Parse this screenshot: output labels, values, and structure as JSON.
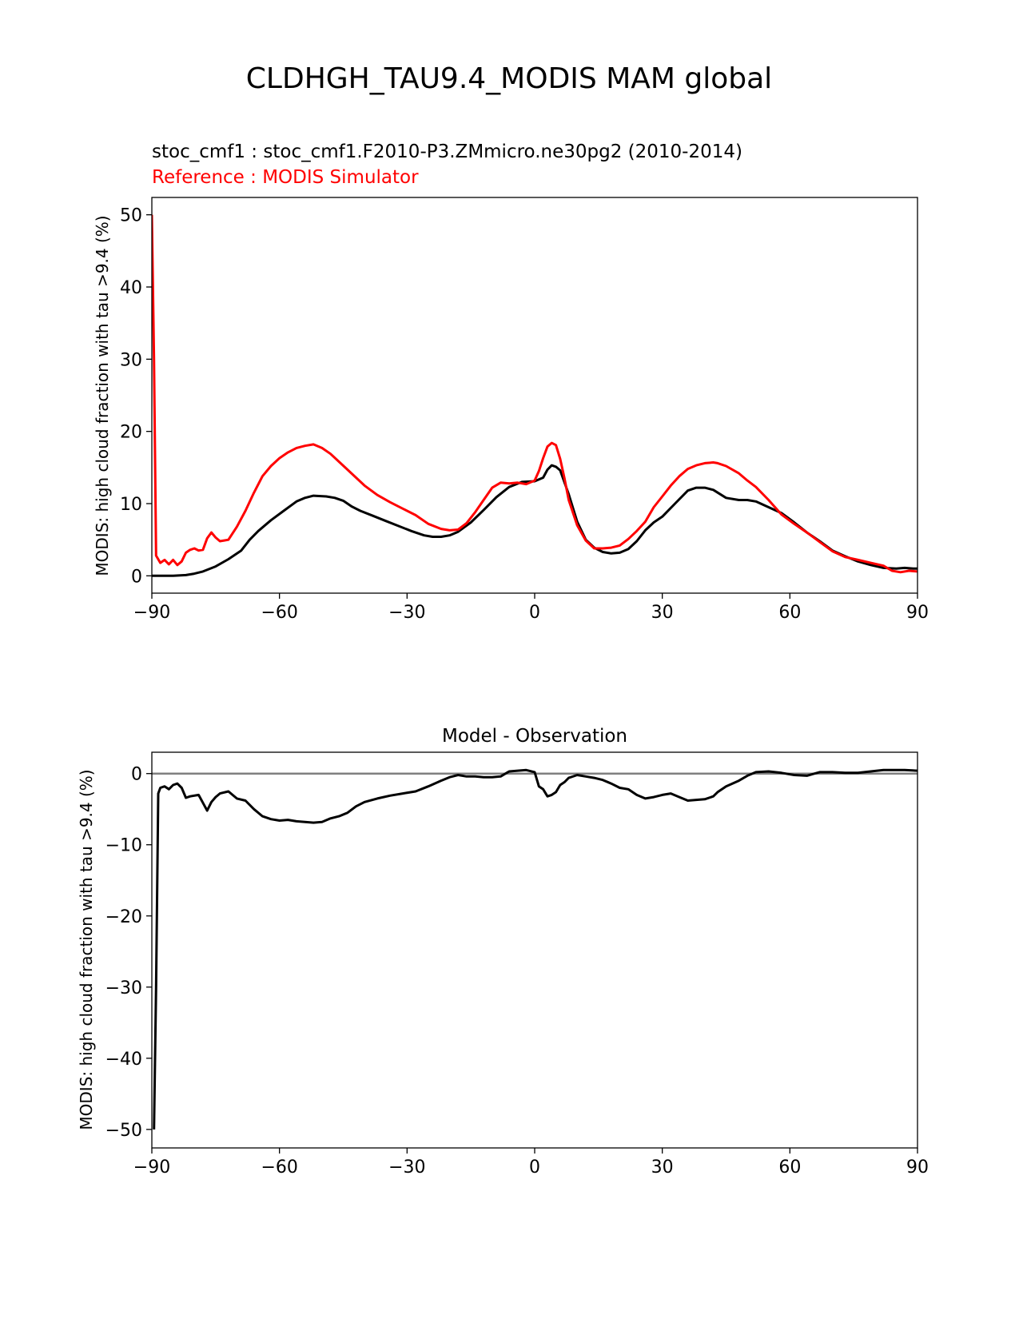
{
  "figure": {
    "title": "CLDHGH_TAU9.4_MODIS MAM global"
  },
  "chart_data": [
    {
      "type": "line",
      "subtitle_test": "stoc_cmf1 : stoc_cmf1.F2010-P3.ZMmicro.ne30pg2 (2010-2014)",
      "subtitle_ref": "Reference : MODIS Simulator",
      "xlabel": "",
      "ylabel": "MODIS: high cloud fraction with tau >9.4 (%)",
      "xlim": [
        -90,
        90
      ],
      "ylim": [
        -2.4,
        52.4
      ],
      "xticks": [
        -90,
        -60,
        -30,
        0,
        30,
        60,
        90
      ],
      "xtick_labels": [
        "−90",
        "−60",
        "−30",
        "0",
        "30",
        "60",
        "90"
      ],
      "yticks": [
        0,
        10,
        20,
        30,
        40,
        50
      ],
      "ytick_labels": [
        "0",
        "10",
        "20",
        "30",
        "40",
        "50"
      ],
      "grid": false,
      "series": [
        {
          "name": "stoc_cmf1",
          "color": "#000000",
          "x": [
            -90,
            -85,
            -82,
            -80,
            -78,
            -75,
            -72,
            -69,
            -67,
            -65,
            -62,
            -59,
            -56,
            -54,
            -52,
            -49,
            -47,
            -45,
            -43,
            -41,
            -38,
            -35,
            -32,
            -29,
            -26,
            -24,
            -22,
            -20,
            -18,
            -15,
            -12,
            -9,
            -6,
            -3,
            0,
            2,
            3,
            4,
            5,
            6,
            8,
            10,
            12,
            14,
            16,
            18,
            20,
            22,
            24,
            26,
            28,
            30,
            33,
            36,
            38,
            40,
            42,
            45,
            48,
            50,
            52,
            55,
            58,
            61,
            64,
            67,
            70,
            73,
            76,
            79,
            82,
            85,
            87,
            89,
            90
          ],
          "y": [
            0,
            0,
            0.1,
            0.3,
            0.6,
            1.3,
            2.3,
            3.5,
            5.0,
            6.2,
            7.7,
            9.0,
            10.3,
            10.8,
            11.1,
            11.0,
            10.8,
            10.4,
            9.6,
            9.0,
            8.3,
            7.6,
            6.9,
            6.2,
            5.6,
            5.4,
            5.4,
            5.6,
            6.1,
            7.4,
            9.1,
            10.9,
            12.3,
            13.0,
            13.1,
            13.6,
            14.7,
            15.3,
            15.1,
            14.6,
            11.3,
            7.5,
            5.0,
            3.9,
            3.3,
            3.1,
            3.2,
            3.7,
            4.8,
            6.3,
            7.4,
            8.2,
            10.0,
            11.8,
            12.2,
            12.2,
            11.9,
            10.8,
            10.5,
            10.5,
            10.3,
            9.5,
            8.7,
            7.4,
            6.0,
            4.8,
            3.5,
            2.7,
            2.0,
            1.5,
            1.1,
            1.0,
            1.1,
            1.0,
            1.0
          ],
          "stroke_width": 3
        },
        {
          "name": "MODIS Simulator",
          "color": "#ff0000",
          "x": [
            -90,
            -89.5,
            -89,
            -88,
            -87,
            -86,
            -85,
            -84,
            -83,
            -82,
            -81,
            -80,
            -79,
            -78,
            -77,
            -76,
            -75,
            -74,
            -73,
            -72,
            -70,
            -68,
            -66,
            -64,
            -62,
            -60,
            -58,
            -56,
            -54,
            -52,
            -50,
            -48,
            -46,
            -44,
            -42,
            -40,
            -37,
            -34,
            -31,
            -28,
            -25,
            -22,
            -20,
            -18,
            -16,
            -14,
            -12,
            -10,
            -8,
            -6,
            -4,
            -2,
            0,
            1,
            2,
            3,
            4,
            5,
            6,
            7,
            8,
            10,
            12,
            14,
            16,
            18,
            20,
            22,
            24,
            26,
            28,
            30,
            32,
            34,
            36,
            38,
            40,
            42,
            43,
            45,
            48,
            50,
            52,
            55,
            58,
            61,
            64,
            67,
            70,
            73,
            76,
            79,
            82,
            84,
            86,
            88,
            90
          ],
          "y": [
            50,
            30,
            2.8,
            1.8,
            2.2,
            1.6,
            2.2,
            1.5,
            2.0,
            3.2,
            3.6,
            3.8,
            3.5,
            3.6,
            5.2,
            6.0,
            5.3,
            4.8,
            4.9,
            5.0,
            6.8,
            9.0,
            11.5,
            13.8,
            15.2,
            16.3,
            17.1,
            17.7,
            18.0,
            18.2,
            17.7,
            16.9,
            15.8,
            14.7,
            13.6,
            12.5,
            11.2,
            10.2,
            9.3,
            8.4,
            7.2,
            6.5,
            6.3,
            6.4,
            7.3,
            8.8,
            10.5,
            12.2,
            12.9,
            12.8,
            12.9,
            12.7,
            13.2,
            14.5,
            16.3,
            17.9,
            18.4,
            18.1,
            16.2,
            13.5,
            10.5,
            7.0,
            4.9,
            3.8,
            3.8,
            3.9,
            4.2,
            5.1,
            6.2,
            7.5,
            9.5,
            11.0,
            12.5,
            13.8,
            14.8,
            15.3,
            15.6,
            15.7,
            15.6,
            15.2,
            14.2,
            13.2,
            12.3,
            10.5,
            8.5,
            7.2,
            6.0,
            4.7,
            3.4,
            2.6,
            2.2,
            1.8,
            1.4,
            0.7,
            0.5,
            0.7,
            0.6
          ],
          "stroke_width": 3
        }
      ]
    },
    {
      "type": "line",
      "title": "Model - Observation",
      "xlabel": "",
      "ylabel": "MODIS: high cloud fraction with tau >9.4 (%)",
      "xlim": [
        -90,
        90
      ],
      "ylim": [
        -52.6,
        3.0
      ],
      "xticks": [
        -90,
        -60,
        -30,
        0,
        30,
        60,
        90
      ],
      "xtick_labels": [
        "−90",
        "−60",
        "−30",
        "0",
        "30",
        "60",
        "90"
      ],
      "yticks": [
        0,
        -10,
        -20,
        -30,
        -40,
        -50
      ],
      "ytick_labels": [
        "0",
        "−10",
        "−20",
        "−30",
        "−40",
        "−50"
      ],
      "grid": false,
      "zero_line_color": "#808080",
      "series": [
        {
          "name": "",
          "color": "#000000",
          "x": [
            -89.5,
            -89,
            -88.5,
            -88,
            -87,
            -86,
            -85,
            -84,
            -83,
            -82,
            -81,
            -79,
            -77,
            -76,
            -75,
            -74,
            -72,
            -70,
            -68,
            -66,
            -64,
            -62,
            -60,
            -58,
            -56,
            -54,
            -52,
            -50,
            -48,
            -46,
            -44,
            -42,
            -40,
            -37,
            -34,
            -31,
            -28,
            -25,
            -22,
            -20,
            -18,
            -16,
            -14,
            -12,
            -10,
            -8,
            -6,
            -4,
            -2,
            0,
            1,
            2,
            3,
            4,
            5,
            6,
            7,
            8,
            10,
            12,
            14,
            16,
            18,
            20,
            22,
            24,
            26,
            28,
            30,
            32,
            34,
            36,
            38,
            40,
            42,
            43,
            45,
            48,
            50,
            52,
            55,
            58,
            61,
            64,
            67,
            70,
            73,
            76,
            79,
            82,
            85,
            87,
            90
          ],
          "y": [
            -50,
            -30,
            -2.8,
            -2.0,
            -1.8,
            -2.2,
            -1.6,
            -1.4,
            -2.0,
            -3.4,
            -3.2,
            -3.0,
            -5.2,
            -4.0,
            -3.3,
            -2.8,
            -2.5,
            -3.5,
            -3.8,
            -5.0,
            -6.0,
            -6.4,
            -6.6,
            -6.5,
            -6.7,
            -6.8,
            -6.9,
            -6.8,
            -6.3,
            -6.0,
            -5.5,
            -4.6,
            -4.0,
            -3.5,
            -3.1,
            -2.8,
            -2.5,
            -1.8,
            -1.0,
            -0.5,
            -0.2,
            -0.4,
            -0.4,
            -0.5,
            -0.5,
            -0.4,
            0.3,
            0.4,
            0.5,
            0.2,
            -1.8,
            -2.2,
            -3.2,
            -3.0,
            -2.6,
            -1.6,
            -1.2,
            -0.6,
            -0.2,
            -0.4,
            -0.6,
            -0.9,
            -1.4,
            -2.0,
            -2.2,
            -3.0,
            -3.5,
            -3.3,
            -3.0,
            -2.8,
            -3.3,
            -3.8,
            -3.7,
            -3.6,
            -3.2,
            -2.6,
            -1.8,
            -1.0,
            -0.3,
            0.2,
            0.3,
            0.1,
            -0.2,
            -0.3,
            0.2,
            0.2,
            0.1,
            0.1,
            0.3,
            0.5,
            0.5,
            0.5,
            0.4
          ],
          "stroke_width": 3
        }
      ]
    }
  ]
}
